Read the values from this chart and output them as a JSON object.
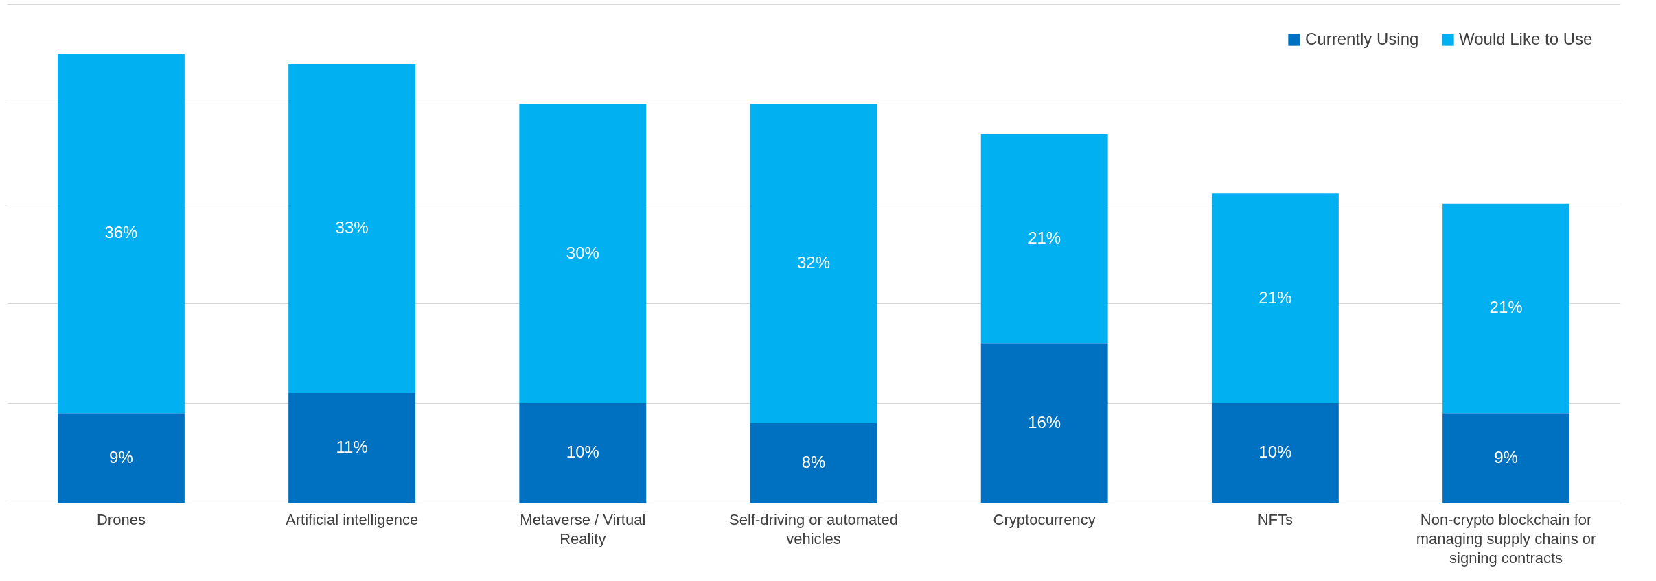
{
  "chart_data": {
    "type": "bar",
    "stacked": true,
    "categories": [
      "Drones",
      "Artificial intelligence",
      "Metaverse / Virtual Reality",
      "Self-driving or automated vehicles",
      "Cryptocurrency",
      "NFTs",
      "Non-crypto blockchain for managing supply chains or signing contracts"
    ],
    "series": [
      {
        "name": "Currently Using",
        "color": "#0070c0",
        "values": [
          9,
          11,
          10,
          8,
          16,
          10,
          9
        ],
        "value_labels": [
          "9%",
          "11%",
          "10%",
          "8%",
          "16%",
          "10%",
          "9%"
        ]
      },
      {
        "name": "Would Like to Use",
        "color": "#00b0f0",
        "values": [
          36,
          33,
          30,
          32,
          21,
          21,
          21
        ],
        "value_labels": [
          "36%",
          "33%",
          "30%",
          "32%",
          "21%",
          "21%",
          "21%"
        ]
      }
    ],
    "ylim": [
      0,
      50
    ],
    "yticks": [
      {
        "value": 0,
        "label": null
      },
      {
        "value": 10,
        "label": null
      },
      {
        "value": 20,
        "label": null
      },
      {
        "value": 30,
        "label": null
      },
      {
        "value": 40,
        "label": null
      },
      {
        "value": 50,
        "label": null
      }
    ],
    "grid": "y",
    "legend": "top right",
    "tick_labels": "x"
  }
}
